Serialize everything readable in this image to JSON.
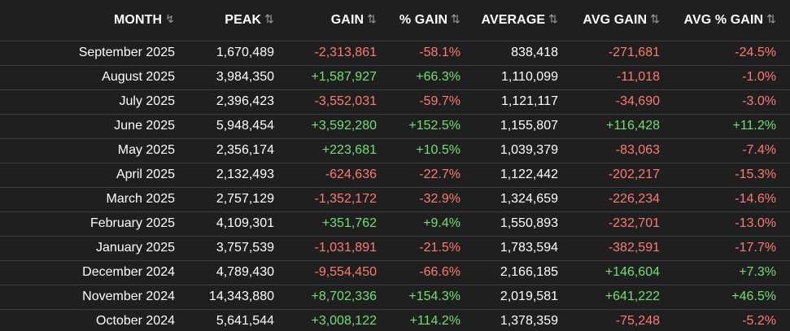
{
  "columns": {
    "month": "MONTH",
    "peak": "PEAK",
    "gain": "GAIN",
    "pct_gain": "% GAIN",
    "average": "AVERAGE",
    "avg_gain": "AVG GAIN",
    "avg_pct_gain": "AVG % GAIN"
  },
  "icons": {
    "sort_active": "sort-desc-icon",
    "sort_inactive": "sort-both-icon"
  },
  "colors": {
    "background": "#1f1f20",
    "positive": "#6fe06f",
    "negative": "#ff7a6e",
    "text": "#ffffff",
    "divider": "#3a3a3c"
  },
  "rows": [
    {
      "month": "September 2025",
      "peak": "1,670,489",
      "gain": "-2,313,861",
      "pct_gain": "-58.1%",
      "average": "838,418",
      "avg_gain": "-271,681",
      "avg_pct_gain": "-24.5%"
    },
    {
      "month": "August 2025",
      "peak": "3,984,350",
      "gain": "+1,587,927",
      "pct_gain": "+66.3%",
      "average": "1,110,099",
      "avg_gain": "-11,018",
      "avg_pct_gain": "-1.0%"
    },
    {
      "month": "July 2025",
      "peak": "2,396,423",
      "gain": "-3,552,031",
      "pct_gain": "-59.7%",
      "average": "1,121,117",
      "avg_gain": "-34,690",
      "avg_pct_gain": "-3.0%"
    },
    {
      "month": "June 2025",
      "peak": "5,948,454",
      "gain": "+3,592,280",
      "pct_gain": "+152.5%",
      "average": "1,155,807",
      "avg_gain": "+116,428",
      "avg_pct_gain": "+11.2%"
    },
    {
      "month": "May 2025",
      "peak": "2,356,174",
      "gain": "+223,681",
      "pct_gain": "+10.5%",
      "average": "1,039,379",
      "avg_gain": "-83,063",
      "avg_pct_gain": "-7.4%"
    },
    {
      "month": "April 2025",
      "peak": "2,132,493",
      "gain": "-624,636",
      "pct_gain": "-22.7%",
      "average": "1,122,442",
      "avg_gain": "-202,217",
      "avg_pct_gain": "-15.3%"
    },
    {
      "month": "March 2025",
      "peak": "2,757,129",
      "gain": "-1,352,172",
      "pct_gain": "-32.9%",
      "average": "1,324,659",
      "avg_gain": "-226,234",
      "avg_pct_gain": "-14.6%"
    },
    {
      "month": "February 2025",
      "peak": "4,109,301",
      "gain": "+351,762",
      "pct_gain": "+9.4%",
      "average": "1,550,893",
      "avg_gain": "-232,701",
      "avg_pct_gain": "-13.0%"
    },
    {
      "month": "January 2025",
      "peak": "3,757,539",
      "gain": "-1,031,891",
      "pct_gain": "-21.5%",
      "average": "1,783,594",
      "avg_gain": "-382,591",
      "avg_pct_gain": "-17.7%"
    },
    {
      "month": "December 2024",
      "peak": "4,789,430",
      "gain": "-9,554,450",
      "pct_gain": "-66.6%",
      "average": "2,166,185",
      "avg_gain": "+146,604",
      "avg_pct_gain": "+7.3%"
    },
    {
      "month": "November 2024",
      "peak": "14,343,880",
      "gain": "+8,702,336",
      "pct_gain": "+154.3%",
      "average": "2,019,581",
      "avg_gain": "+641,222",
      "avg_pct_gain": "+46.5%"
    },
    {
      "month": "October 2024",
      "peak": "5,641,544",
      "gain": "+3,008,122",
      "pct_gain": "+114.2%",
      "average": "1,378,359",
      "avg_gain": "-75,248",
      "avg_pct_gain": "-5.2%"
    }
  ]
}
